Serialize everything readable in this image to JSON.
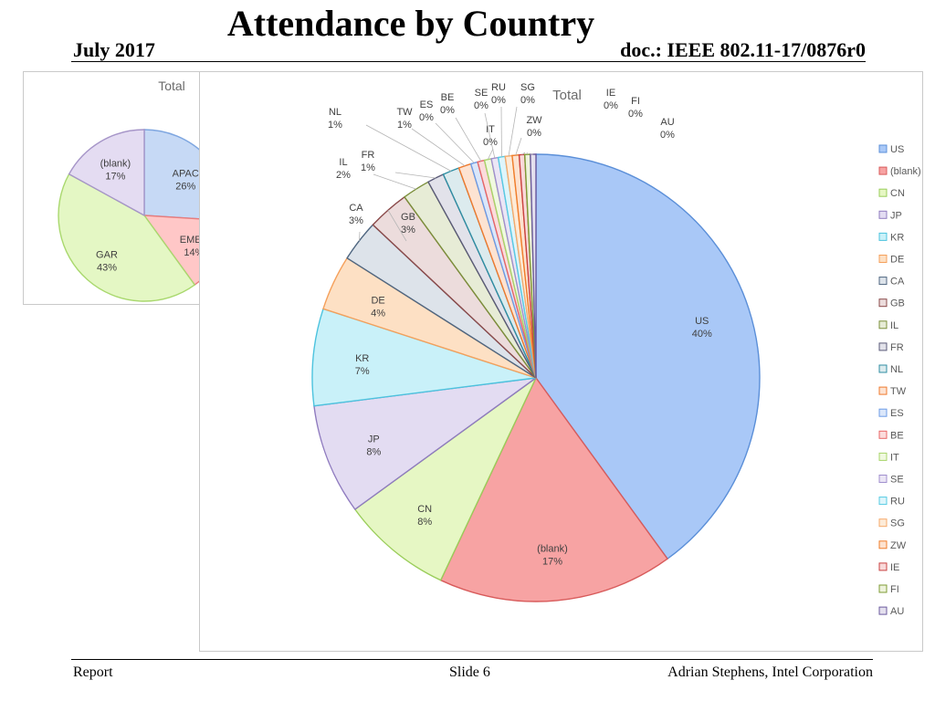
{
  "header": {
    "date": "July 2017",
    "title": "Attendance by Country",
    "doc": "doc.: IEEE 802.11-17/0876r0"
  },
  "footer": {
    "left": "Report",
    "center": "Slide 6",
    "right": "Adrian Stephens, Intel Corporation"
  },
  "chart_data": [
    {
      "type": "pie",
      "title": "Total",
      "legend": "right",
      "slices": [
        {
          "label": "APAC",
          "pct_label": "26%",
          "value": 26,
          "color": "#c6d9f5",
          "stroke": "#7ea6e0"
        },
        {
          "label": "EMEA",
          "pct_label": "14%",
          "value": 14,
          "color": "#ffc7c7",
          "stroke": "#e87d7d"
        },
        {
          "label": "GAR",
          "pct_label": "43%",
          "value": 43,
          "color": "#e4f7c4",
          "stroke": "#a9d86e"
        },
        {
          "label": "(blank)",
          "pct_label": "17%",
          "value": 17,
          "color": "#e4dcf2",
          "stroke": "#a695c8"
        }
      ]
    },
    {
      "type": "pie",
      "title": "Total",
      "legend": "right",
      "slices": [
        {
          "label": "US",
          "pct_label": "40%",
          "value": 40,
          "color": "#a9c8f7",
          "stroke": "#5b8fd8"
        },
        {
          "label": "(blank)",
          "pct_label": "17%",
          "value": 17,
          "color": "#f7a3a3",
          "stroke": "#d85b5b"
        },
        {
          "label": "CN",
          "pct_label": "8%",
          "value": 8,
          "color": "#e6f7c4",
          "stroke": "#9acd5a"
        },
        {
          "label": "JP",
          "pct_label": "8%",
          "value": 8,
          "color": "#e3dcf2",
          "stroke": "#8f7bbf"
        },
        {
          "label": "KR",
          "pct_label": "7%",
          "value": 7,
          "color": "#c9f1f9",
          "stroke": "#4cc3de"
        },
        {
          "label": "DE",
          "pct_label": "4%",
          "value": 4,
          "color": "#fde0c4",
          "stroke": "#f5a05b"
        },
        {
          "label": "CA",
          "pct_label": "3%",
          "value": 3,
          "color": "#dde3ea",
          "stroke": "#4f6680"
        },
        {
          "label": "GB",
          "pct_label": "3%",
          "value": 3,
          "color": "#ecdcdc",
          "stroke": "#8a4a4a"
        },
        {
          "label": "IL",
          "pct_label": "2%",
          "value": 2,
          "color": "#e7ecd6",
          "stroke": "#7b8f3a"
        },
        {
          "label": "FR",
          "pct_label": "1%",
          "value": 1.2,
          "color": "#e2e2ea",
          "stroke": "#5a5a78"
        },
        {
          "label": "NL",
          "pct_label": "1%",
          "value": 1.2,
          "color": "#dcebee",
          "stroke": "#2f8ea3"
        },
        {
          "label": "TW",
          "pct_label": "1%",
          "value": 0.9,
          "color": "#fde3d2",
          "stroke": "#ef7a2e"
        },
        {
          "label": "ES",
          "pct_label": "0%",
          "value": 0.5,
          "color": "#dbe7fa",
          "stroke": "#6c9be6"
        },
        {
          "label": "BE",
          "pct_label": "0%",
          "value": 0.5,
          "color": "#fbdcdc",
          "stroke": "#e86666"
        },
        {
          "label": "IT",
          "pct_label": "0%",
          "value": 0.5,
          "color": "#f0f9df",
          "stroke": "#a8d46a"
        },
        {
          "label": "SE",
          "pct_label": "0%",
          "value": 0.5,
          "color": "#ebe6f5",
          "stroke": "#a08fce"
        },
        {
          "label": "RU",
          "pct_label": "0%",
          "value": 0.5,
          "color": "#def5fb",
          "stroke": "#56cbe3"
        },
        {
          "label": "SG",
          "pct_label": "0%",
          "value": 0.5,
          "color": "#fdebd8",
          "stroke": "#f6aa6a"
        },
        {
          "label": "ZW",
          "pct_label": "0%",
          "value": 0.5,
          "color": "#fde2cf",
          "stroke": "#f07d2a"
        },
        {
          "label": "IE",
          "pct_label": "0%",
          "value": 0.4,
          "color": "#f9d9d9",
          "stroke": "#c94242"
        },
        {
          "label": "FI",
          "pct_label": "0%",
          "value": 0.4,
          "color": "#eef3dc",
          "stroke": "#7e9b35"
        },
        {
          "label": "AU",
          "pct_label": "0%",
          "value": 0.4,
          "color": "#e4e0ee",
          "stroke": "#6b5a9e"
        }
      ]
    }
  ]
}
